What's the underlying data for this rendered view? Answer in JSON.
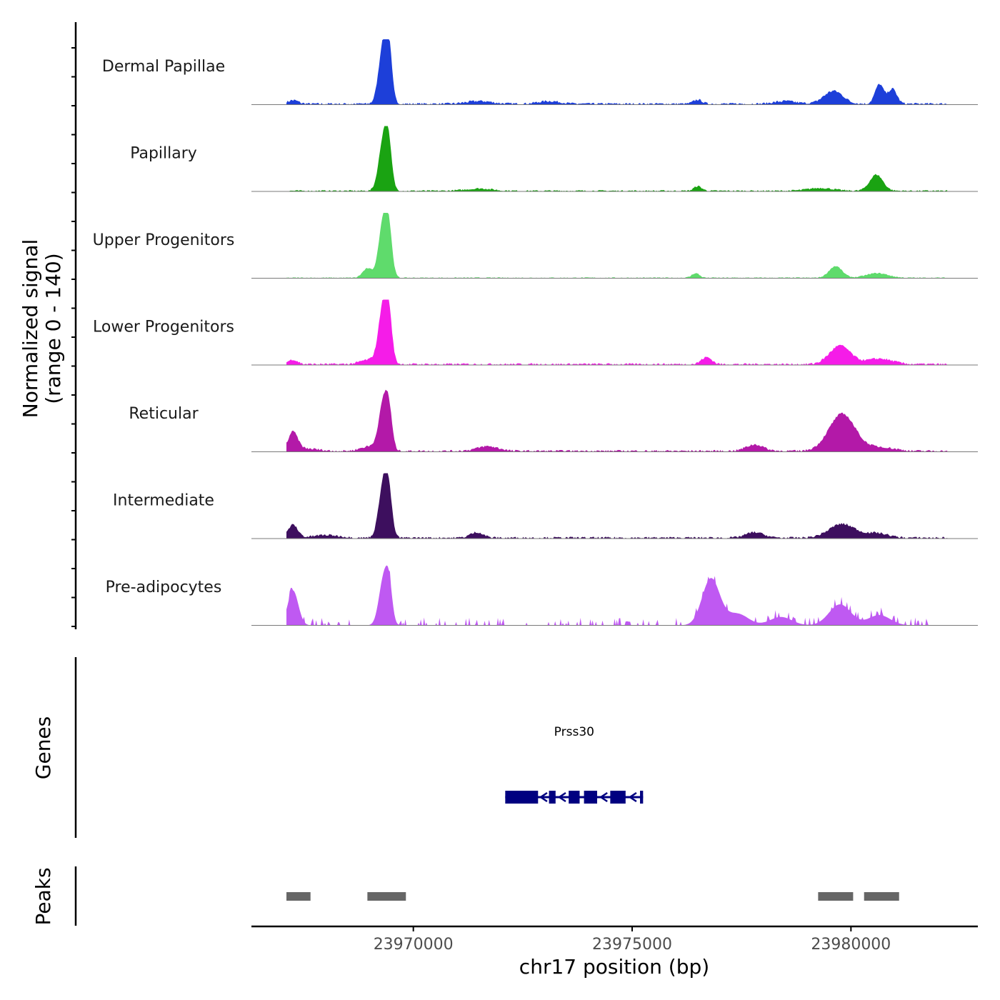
{
  "chart_data": {
    "type": "area",
    "title": "",
    "y_axis_title_line1": "Normalized signal",
    "y_axis_title_line2": "(range 0 - 140)",
    "ylim": [
      0,
      140
    ],
    "xlim": [
      23966300,
      23982900
    ],
    "xlabel": "chr17 position (bp)",
    "x_ticks": [
      23970000,
      23975000,
      23980000
    ],
    "x_tick_labels": [
      "23970000",
      "23975000",
      "23980000"
    ],
    "data_range": [
      23967100,
      23982200
    ],
    "tracks": [
      {
        "name": "Dermal Papillae",
        "color": "#1D3FD9",
        "peaks": [
          [
            23967250,
            8,
            120
          ],
          [
            23969330,
            140,
            110
          ],
          [
            23969440,
            75,
            70
          ],
          [
            23971500,
            6,
            300
          ],
          [
            23973100,
            6,
            250
          ],
          [
            23976500,
            9,
            100
          ],
          [
            23978500,
            6,
            250
          ],
          [
            23979600,
            28,
            220
          ],
          [
            23980650,
            42,
            100
          ],
          [
            23980950,
            32,
            100
          ]
        ],
        "noise": 4
      },
      {
        "name": "Papillary",
        "color": "#1AA312",
        "peaks": [
          [
            23969330,
            120,
            110
          ],
          [
            23969440,
            55,
            70
          ],
          [
            23971500,
            5,
            300
          ],
          [
            23976500,
            10,
            90
          ],
          [
            23979300,
            6,
            300
          ],
          [
            23980580,
            35,
            150
          ]
        ],
        "noise": 3
      },
      {
        "name": "Upper Progenitors",
        "color": "#5FDB6C",
        "peaks": [
          [
            23968950,
            20,
            110
          ],
          [
            23969330,
            135,
            110
          ],
          [
            23969450,
            55,
            70
          ],
          [
            23976450,
            10,
            90
          ],
          [
            23979650,
            25,
            150
          ],
          [
            23980600,
            10,
            250
          ]
        ],
        "noise": 2
      },
      {
        "name": "Lower Progenitors",
        "color": "#F51CE8",
        "peaks": [
          [
            23967250,
            10,
            110
          ],
          [
            23969000,
            10,
            200
          ],
          [
            23969330,
            140,
            110
          ],
          [
            23969450,
            55,
            70
          ],
          [
            23976700,
            15,
            120
          ],
          [
            23979750,
            40,
            240
          ],
          [
            23980650,
            12,
            300
          ]
        ],
        "noise": 4
      },
      {
        "name": "Reticular",
        "color": "#B319A8",
        "peaks": [
          [
            23967250,
            40,
            110
          ],
          [
            23967600,
            5,
            250
          ],
          [
            23969000,
            10,
            200
          ],
          [
            23969330,
            110,
            110
          ],
          [
            23969450,
            50,
            70
          ],
          [
            23971700,
            10,
            250
          ],
          [
            23977800,
            14,
            200
          ],
          [
            23979800,
            80,
            300
          ],
          [
            23980700,
            8,
            300
          ]
        ],
        "noise": 4
      },
      {
        "name": "Intermediate",
        "color": "#3D0F5E",
        "peaks": [
          [
            23967250,
            28,
            110
          ],
          [
            23968000,
            6,
            300
          ],
          [
            23969330,
            130,
            110
          ],
          [
            23969450,
            50,
            70
          ],
          [
            23971450,
            12,
            150
          ],
          [
            23977800,
            12,
            200
          ],
          [
            23979800,
            30,
            300
          ],
          [
            23980600,
            10,
            250
          ]
        ],
        "noise": 4
      },
      {
        "name": "Pre-adipocytes",
        "color": "#BF59F2",
        "peaks": [
          [
            23967250,
            75,
            120
          ],
          [
            23969330,
            105,
            110
          ],
          [
            23969450,
            55,
            70
          ],
          [
            23976800,
            100,
            200
          ],
          [
            23977400,
            25,
            250
          ],
          [
            23978400,
            18,
            250
          ],
          [
            23979750,
            45,
            250
          ],
          [
            23980650,
            22,
            250
          ]
        ],
        "noise": 12
      }
    ],
    "genes_track_title": "Genes",
    "genes": [
      {
        "name": "Prss30",
        "strand": "-",
        "start": 23972100,
        "end": 23975250,
        "exons": [
          [
            23972100,
            23972850
          ],
          [
            23973100,
            23973250
          ],
          [
            23973550,
            23973800
          ],
          [
            23973900,
            23974200
          ],
          [
            23974500,
            23974850
          ],
          [
            23975180,
            23975250
          ]
        ],
        "color": "#000080"
      }
    ],
    "peaks_track_title": "Peaks",
    "peak_regions": [
      [
        23967100,
        23967650
      ],
      [
        23968950,
        23969830
      ],
      [
        23979250,
        23980050
      ],
      [
        23980300,
        23981100
      ]
    ],
    "peak_color": "#666666"
  }
}
